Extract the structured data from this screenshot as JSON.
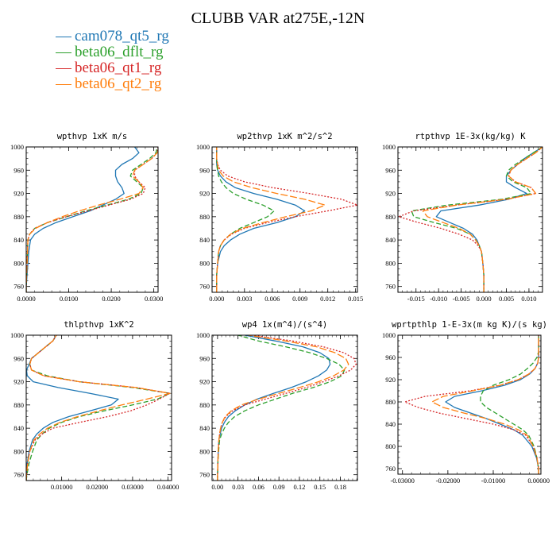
{
  "title": "CLUBB VAR at275E,-12N",
  "legend": [
    {
      "label": "cam078_qt5_rg",
      "color": "#1f77b4"
    },
    {
      "label": "beta06_dflt_rg",
      "color": "#2ca02c"
    },
    {
      "label": "beta06_qt1_rg",
      "color": "#d62728"
    },
    {
      "label": "beta06_qt2_rg",
      "color": "#ff7f0e"
    }
  ],
  "chart_data": [
    {
      "type": "line",
      "title": "wpthvp  1xK m/s",
      "ylim": [
        1000,
        750
      ],
      "yticks": [
        "760",
        "800",
        "840",
        "880",
        "920",
        "960",
        "1000"
      ],
      "xlim": [
        0.0,
        0.031
      ],
      "xticks": [
        {
          "v": 0.0,
          "l": "0.0000"
        },
        {
          "v": 0.01,
          "l": "0.0100"
        },
        {
          "v": 0.02,
          "l": "0.0200"
        },
        {
          "v": 0.03,
          "l": "0.0300"
        }
      ],
      "y": [
        750,
        760,
        780,
        800,
        820,
        840,
        850,
        860,
        870,
        880,
        890,
        900,
        910,
        920,
        930,
        940,
        950,
        960,
        970,
        980,
        990,
        1000
      ],
      "series": [
        {
          "name": "cam078_qt5_rg",
          "dash": "",
          "x": [
            0,
            0,
            0.0002,
            0.0004,
            0.0006,
            0.001,
            0.002,
            0.004,
            0.007,
            0.011,
            0.015,
            0.018,
            0.021,
            0.023,
            0.0225,
            0.0215,
            0.021,
            0.021,
            0.0225,
            0.025,
            0.0265,
            0.0255
          ]
        },
        {
          "name": "beta06_dflt_rg",
          "dash": "6,3",
          "x": [
            0,
            0,
            0.0001,
            0.0002,
            0.0003,
            0.0004,
            0.0008,
            0.002,
            0.005,
            0.0095,
            0.014,
            0.019,
            0.024,
            0.027,
            0.0275,
            0.026,
            0.0245,
            0.025,
            0.027,
            0.029,
            0.0305,
            0.0308
          ]
        },
        {
          "name": "beta06_qt1_rg",
          "dash": "2,2",
          "x": [
            0,
            0,
            0.0001,
            0.0002,
            0.0003,
            0.0004,
            0.0008,
            0.002,
            0.005,
            0.0095,
            0.0145,
            0.0195,
            0.0245,
            0.0275,
            0.028,
            0.0265,
            0.0255,
            0.0255,
            0.0275,
            0.0295,
            0.0308,
            0.031
          ]
        },
        {
          "name": "beta06_qt2_rg",
          "dash": "9,3",
          "x": [
            0,
            0,
            0.0001,
            0.0002,
            0.0003,
            0.0004,
            0.0008,
            0.0022,
            0.005,
            0.0085,
            0.0125,
            0.017,
            0.022,
            0.0265,
            0.0275,
            0.0265,
            0.025,
            0.0255,
            0.0275,
            0.0295,
            0.0308,
            0.0315
          ]
        }
      ]
    },
    {
      "type": "line",
      "title": "wp2thvp  1xK m^2/s^2",
      "ylim": [
        1000,
        750
      ],
      "yticks": [
        "760",
        "800",
        "840",
        "880",
        "920",
        "960",
        "1000"
      ],
      "xlim": [
        -0.0005,
        0.0152
      ],
      "xticks": [
        {
          "v": 0.0,
          "l": "0.000"
        },
        {
          "v": 0.003,
          "l": "0.003"
        },
        {
          "v": 0.006,
          "l": "0.006"
        },
        {
          "v": 0.009,
          "l": "0.009"
        },
        {
          "v": 0.012,
          "l": "0.012"
        },
        {
          "v": 0.015,
          "l": "0.015"
        }
      ],
      "y": [
        750,
        760,
        780,
        800,
        820,
        830,
        840,
        850,
        860,
        870,
        880,
        890,
        900,
        910,
        920,
        930,
        940,
        950,
        960,
        970,
        980,
        990,
        1000
      ],
      "series": [
        {
          "name": "cam078_qt5_rg",
          "dash": "",
          "x": [
            0,
            0,
            0,
            0.0001,
            0.0004,
            0.0008,
            0.0015,
            0.0025,
            0.004,
            0.0065,
            0.0085,
            0.0095,
            0.0085,
            0.0065,
            0.004,
            0.002,
            0.001,
            0.0004,
            0.0001,
            0,
            0,
            0,
            0
          ]
        },
        {
          "name": "beta06_dflt_rg",
          "dash": "6,3",
          "x": [
            0,
            0,
            0,
            0.0001,
            0.0002,
            0.0004,
            0.0008,
            0.0015,
            0.0025,
            0.004,
            0.0055,
            0.0062,
            0.005,
            0.0032,
            0.0018,
            0.001,
            0.0005,
            0.0002,
            0.0001,
            0,
            0,
            0,
            0
          ]
        },
        {
          "name": "beta06_qt1_rg",
          "dash": "2,2",
          "x": [
            0,
            0,
            0,
            0.0001,
            0.0002,
            0.0004,
            0.0008,
            0.0016,
            0.003,
            0.0055,
            0.0085,
            0.012,
            0.0152,
            0.0135,
            0.01,
            0.006,
            0.003,
            0.0012,
            0.0004,
            0.0001,
            0,
            0,
            0
          ]
        },
        {
          "name": "beta06_qt2_rg",
          "dash": "9,3",
          "x": [
            0,
            0,
            0,
            0.0001,
            0.0002,
            0.0004,
            0.0008,
            0.0015,
            0.0028,
            0.005,
            0.0075,
            0.0102,
            0.0117,
            0.0095,
            0.0065,
            0.0038,
            0.0018,
            0.0007,
            0.0002,
            0.0001,
            0,
            0,
            0
          ]
        }
      ]
    },
    {
      "type": "line",
      "title": "rtpthvp  1E-3x(kg/kg) K",
      "ylim": [
        1000,
        750
      ],
      "yticks": [
        "760",
        "800",
        "840",
        "880",
        "920",
        "960",
        "1000"
      ],
      "xlim": [
        -0.019,
        0.013
      ],
      "xticks": [
        {
          "v": -0.015,
          "l": "-0.015"
        },
        {
          "v": -0.01,
          "l": "-0.010"
        },
        {
          "v": -0.005,
          "l": "-0.005"
        },
        {
          "v": 0.0,
          "l": "0.000"
        },
        {
          "v": 0.005,
          "l": "0.005"
        },
        {
          "v": 0.01,
          "l": "0.010"
        }
      ],
      "y": [
        750,
        760,
        780,
        800,
        820,
        830,
        840,
        850,
        860,
        870,
        880,
        890,
        900,
        910,
        920,
        930,
        940,
        950,
        960,
        970,
        980,
        990,
        1000
      ],
      "series": [
        {
          "name": "cam078_qt5_rg",
          "dash": "",
          "x": [
            0,
            0,
            0,
            -0.0002,
            -0.0005,
            -0.001,
            -0.0015,
            -0.0025,
            -0.0045,
            -0.0075,
            -0.0105,
            -0.0095,
            -0.001,
            0.0055,
            0.0095,
            0.007,
            0.005,
            0.005,
            0.006,
            0.0075,
            0.009,
            0.011,
            0.013
          ]
        },
        {
          "name": "beta06_dflt_rg",
          "dash": "6,3",
          "x": [
            0,
            0,
            0,
            -0.0002,
            -0.0005,
            -0.001,
            -0.0018,
            -0.003,
            -0.006,
            -0.011,
            -0.0155,
            -0.016,
            -0.008,
            0.004,
            0.0105,
            0.0095,
            0.0065,
            0.005,
            0.0055,
            0.007,
            0.009,
            0.011,
            0.013
          ]
        },
        {
          "name": "beta06_qt1_rg",
          "dash": "2,2",
          "x": [
            0,
            0,
            0,
            -0.0002,
            -0.0005,
            -0.0012,
            -0.0025,
            -0.0055,
            -0.0095,
            -0.0145,
            -0.0188,
            -0.0155,
            -0.006,
            0.005,
            0.0115,
            0.0105,
            0.007,
            0.0055,
            0.006,
            0.0075,
            0.0095,
            0.0115,
            0.013
          ]
        },
        {
          "name": "beta06_qt2_rg",
          "dash": "9,3",
          "x": [
            0,
            0,
            0,
            -0.0002,
            -0.0005,
            -0.001,
            -0.0018,
            -0.003,
            -0.0055,
            -0.009,
            -0.0125,
            -0.0135,
            -0.006,
            0.005,
            0.0115,
            0.0105,
            0.007,
            0.0055,
            0.006,
            0.0075,
            0.0095,
            0.0115,
            0.013
          ]
        }
      ]
    },
    {
      "type": "line",
      "title": "thlpthvp  1xK^2",
      "ylim": [
        1000,
        750
      ],
      "yticks": [
        "760",
        "800",
        "840",
        "880",
        "920",
        "960",
        "1000"
      ],
      "xlim": [
        0.0,
        0.041
      ],
      "xticks": [
        {
          "v": 0.01,
          "l": "0.01000"
        },
        {
          "v": 0.02,
          "l": "0.02000"
        },
        {
          "v": 0.03,
          "l": "0.03000"
        },
        {
          "v": 0.04,
          "l": "0.04000"
        }
      ],
      "y": [
        750,
        760,
        780,
        800,
        820,
        830,
        840,
        850,
        860,
        870,
        880,
        890,
        900,
        910,
        920,
        930,
        940,
        950,
        960,
        970,
        980,
        990,
        1000
      ],
      "series": [
        {
          "name": "cam078_qt5_rg",
          "dash": "",
          "x": [
            0,
            0.0001,
            0.0003,
            0.0008,
            0.0018,
            0.003,
            0.0048,
            0.0075,
            0.012,
            0.018,
            0.024,
            0.026,
            0.018,
            0.009,
            0.002,
            0.0003,
            0.0001,
            0.0008,
            0.0015,
            0.0035,
            0.0055,
            0.0075,
            0.0085
          ]
        },
        {
          "name": "beta06_dflt_rg",
          "dash": "6,3",
          "x": [
            0,
            0.0002,
            0.0008,
            0.0018,
            0.003,
            0.0045,
            0.0065,
            0.01,
            0.015,
            0.022,
            0.03,
            0.037,
            0.0405,
            0.03,
            0.015,
            0.006,
            0.0015,
            0.001,
            0.0015,
            0.0035,
            0.0055,
            0.0075,
            0.0085
          ]
        },
        {
          "name": "beta06_qt1_rg",
          "dash": "2,2",
          "x": [
            0,
            0.0001,
            0.0004,
            0.001,
            0.0025,
            0.0045,
            0.0075,
            0.015,
            0.023,
            0.0295,
            0.034,
            0.0375,
            0.0405,
            0.031,
            0.015,
            0.005,
            0.0015,
            0.001,
            0.0015,
            0.0035,
            0.0055,
            0.0075,
            0.0085
          ]
        },
        {
          "name": "beta06_qt2_rg",
          "dash": "9,3",
          "x": [
            0,
            0.0001,
            0.0004,
            0.001,
            0.0022,
            0.0038,
            0.006,
            0.0095,
            0.0145,
            0.0205,
            0.027,
            0.034,
            0.0405,
            0.031,
            0.015,
            0.005,
            0.0015,
            0.001,
            0.0015,
            0.0035,
            0.0055,
            0.0075,
            0.0085
          ]
        }
      ]
    },
    {
      "type": "line",
      "title": "wp4  1x(m^4)/(s^4)",
      "ylim": [
        1000,
        750
      ],
      "yticks": [
        "760",
        "800",
        "840",
        "880",
        "920",
        "960",
        "1000"
      ],
      "xlim": [
        -0.008,
        0.205
      ],
      "xticks": [
        {
          "v": 0.0,
          "l": "0.00"
        },
        {
          "v": 0.03,
          "l": "0.03"
        },
        {
          "v": 0.06,
          "l": "0.06"
        },
        {
          "v": 0.09,
          "l": "0.09"
        },
        {
          "v": 0.12,
          "l": "0.12"
        },
        {
          "v": 0.15,
          "l": "0.15"
        },
        {
          "v": 0.18,
          "l": "0.18"
        }
      ],
      "y": [
        750,
        760,
        780,
        800,
        820,
        830,
        840,
        850,
        860,
        870,
        880,
        890,
        900,
        910,
        920,
        930,
        940,
        950,
        960,
        970,
        980,
        990,
        1000
      ],
      "series": [
        {
          "name": "cam078_qt5_rg",
          "dash": "",
          "x": [
            0,
            0,
            0.0005,
            0.001,
            0.002,
            0.004,
            0.006,
            0.01,
            0.016,
            0.026,
            0.04,
            0.058,
            0.082,
            0.108,
            0.13,
            0.148,
            0.16,
            0.165,
            0.163,
            0.15,
            0.125,
            0.085,
            0.04
          ]
        },
        {
          "name": "beta06_dflt_rg",
          "dash": "6,3",
          "x": [
            0,
            0,
            0.0005,
            0.0015,
            0.003,
            0.006,
            0.01,
            0.016,
            0.025,
            0.04,
            0.06,
            0.085,
            0.11,
            0.14,
            0.165,
            0.182,
            0.186,
            0.178,
            0.16,
            0.135,
            0.1,
            0.06,
            0.03
          ]
        },
        {
          "name": "beta06_qt1_rg",
          "dash": "2,2",
          "x": [
            0,
            0,
            0.0005,
            0.001,
            0.002,
            0.003,
            0.0045,
            0.007,
            0.012,
            0.022,
            0.04,
            0.07,
            0.1,
            0.13,
            0.155,
            0.178,
            0.195,
            0.203,
            0.2,
            0.185,
            0.155,
            0.11,
            0.05
          ]
        },
        {
          "name": "beta06_qt2_rg",
          "dash": "9,3",
          "x": [
            0,
            0,
            0.0005,
            0.001,
            0.002,
            0.003,
            0.0045,
            0.007,
            0.011,
            0.02,
            0.035,
            0.06,
            0.09,
            0.12,
            0.148,
            0.17,
            0.185,
            0.192,
            0.188,
            0.172,
            0.145,
            0.1,
            0.045
          ]
        }
      ]
    },
    {
      "type": "line",
      "title": "wprtpthlp  1-E-3x(m kg K)/(s kg)",
      "ylim": [
        1000,
        750
      ],
      "yticks": [
        "760",
        "800",
        "840",
        "880",
        "920",
        "960",
        "1000"
      ],
      "xlim": [
        -0.031,
        0.0005
      ],
      "xticks": [
        {
          "v": -0.03,
          "l": "-0.03000"
        },
        {
          "v": -0.02,
          "l": "-0.02000"
        },
        {
          "v": -0.01,
          "l": "-0.01000"
        },
        {
          "v": 0.0,
          "l": "0.00000"
        }
      ],
      "y": [
        750,
        760,
        780,
        800,
        820,
        830,
        840,
        850,
        860,
        870,
        880,
        890,
        900,
        910,
        920,
        930,
        940,
        950,
        960,
        970,
        980,
        990,
        1000
      ],
      "series": [
        {
          "name": "cam078_qt5_rg",
          "dash": "",
          "x": [
            0,
            0,
            -0.0005,
            -0.0015,
            -0.0035,
            -0.0055,
            -0.0085,
            -0.0115,
            -0.015,
            -0.0185,
            -0.0205,
            -0.0185,
            -0.0125,
            -0.0075,
            -0.004,
            -0.002,
            -0.0008,
            -0.0002,
            0,
            0,
            0,
            0,
            0
          ]
        },
        {
          "name": "beta06_dflt_rg",
          "dash": "6,3",
          "x": [
            0,
            0,
            -0.0004,
            -0.001,
            -0.0022,
            -0.0035,
            -0.0055,
            -0.0075,
            -0.0095,
            -0.0115,
            -0.0128,
            -0.0128,
            -0.0122,
            -0.01,
            -0.0065,
            -0.004,
            -0.0025,
            -0.0012,
            -0.0004,
            0,
            0,
            0,
            0
          ]
        },
        {
          "name": "beta06_qt1_rg",
          "dash": "2,2",
          "x": [
            0,
            0,
            -0.0004,
            -0.0012,
            -0.0028,
            -0.0055,
            -0.01,
            -0.016,
            -0.022,
            -0.0265,
            -0.0295,
            -0.025,
            -0.015,
            -0.0085,
            -0.0045,
            -0.0022,
            -0.0008,
            -0.0002,
            0,
            0,
            0,
            0,
            0
          ]
        },
        {
          "name": "beta06_qt2_rg",
          "dash": "9,3",
          "x": [
            0,
            0,
            -0.0004,
            -0.0012,
            -0.0025,
            -0.0045,
            -0.0075,
            -0.0115,
            -0.0165,
            -0.021,
            -0.0235,
            -0.021,
            -0.0145,
            -0.0085,
            -0.0045,
            -0.0022,
            -0.0008,
            -0.0002,
            0,
            0,
            0,
            0,
            0
          ]
        }
      ]
    }
  ]
}
